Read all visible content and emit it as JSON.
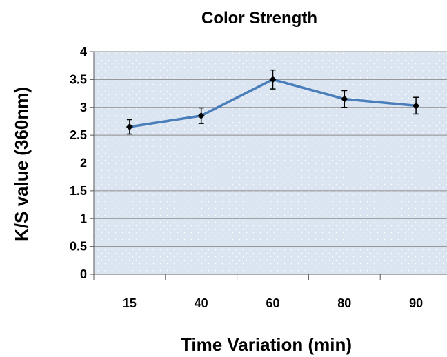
{
  "chart_data": {
    "type": "line",
    "title": "Color Strength",
    "xlabel": "Time Variation (min)",
    "ylabel": "K/S value (360nm)",
    "categories": [
      "15",
      "40",
      "60",
      "80",
      "90"
    ],
    "series": [
      {
        "values": [
          2.65,
          2.85,
          3.5,
          3.15,
          3.03
        ],
        "errors": [
          0.13,
          0.14,
          0.17,
          0.15,
          0.15
        ]
      }
    ],
    "ylim": [
      0,
      4
    ],
    "yticks": [
      "0",
      "0.5",
      "1",
      "1.5",
      "2",
      "2.5",
      "3",
      "3.5",
      "4"
    ],
    "grid": true,
    "legend": "none",
    "colors": {
      "line": "#4a7ebb",
      "marker": "#000000",
      "plot_bg": "#dbe5f1",
      "grid": "#8c8c8c"
    }
  }
}
